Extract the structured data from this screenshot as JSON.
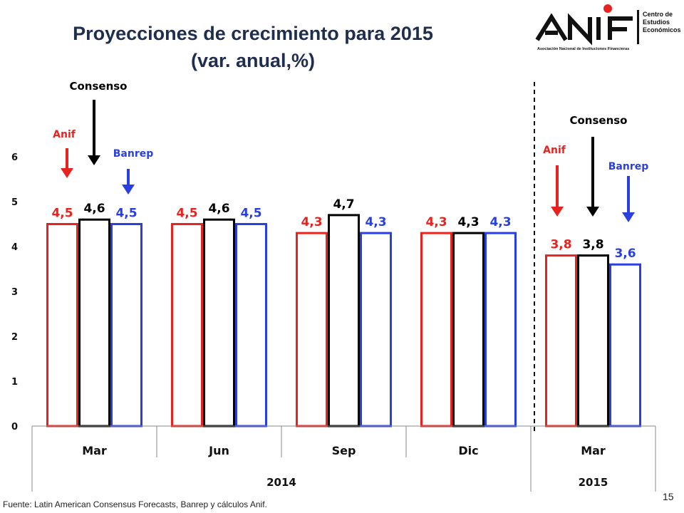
{
  "title_line1": "Proyecciones de crecimiento para 2015",
  "title_line2": "(var. anual,%)",
  "logo": {
    "name": "ANIF",
    "tagline": "Asociación Nacional de Instituciones Financieras",
    "side_line1": "Centro de",
    "side_line2": "Estudios",
    "side_line3": "Económicos"
  },
  "annotations": {
    "consenso": "Consenso",
    "anif": "Anif",
    "banrep": "Banrep"
  },
  "source": "Fuente: Latin American Consensus Forecasts, Banrep y cálculos Anif.",
  "page_number": "15",
  "colors": {
    "anif": "#e8231f",
    "consenso": "#000000",
    "banrep": "#2a3fe0",
    "title": "#1f2d4f"
  },
  "chart_data": {
    "type": "bar",
    "categories": [
      "Mar",
      "Jun",
      "Sep",
      "Dic",
      "Mar"
    ],
    "groups": [
      {
        "label": "2014",
        "categories": [
          "Mar",
          "Jun",
          "Sep",
          "Dic"
        ]
      },
      {
        "label": "2015",
        "categories": [
          "Mar"
        ]
      }
    ],
    "series": [
      {
        "name": "Anif",
        "values": [
          4.5,
          4.5,
          4.3,
          4.3,
          3.8
        ],
        "labels": [
          "4,5",
          "4,5",
          "4,3",
          "4,3",
          "3,8"
        ]
      },
      {
        "name": "Consenso",
        "values": [
          4.6,
          4.6,
          4.7,
          4.3,
          3.8
        ],
        "labels": [
          "4,6",
          "4,6",
          "4,7",
          "4,3",
          "3,8"
        ]
      },
      {
        "name": "Banrep",
        "values": [
          4.5,
          4.5,
          4.3,
          4.3,
          3.6
        ],
        "labels": [
          "4,5",
          "4,5",
          "4,3",
          "4,3",
          "3,6"
        ]
      }
    ],
    "yticks": [
      "0",
      "1",
      "2",
      "3",
      "4",
      "5",
      "6"
    ],
    "ylim": [
      0,
      6
    ],
    "grid": false,
    "bar_fill": "white"
  }
}
